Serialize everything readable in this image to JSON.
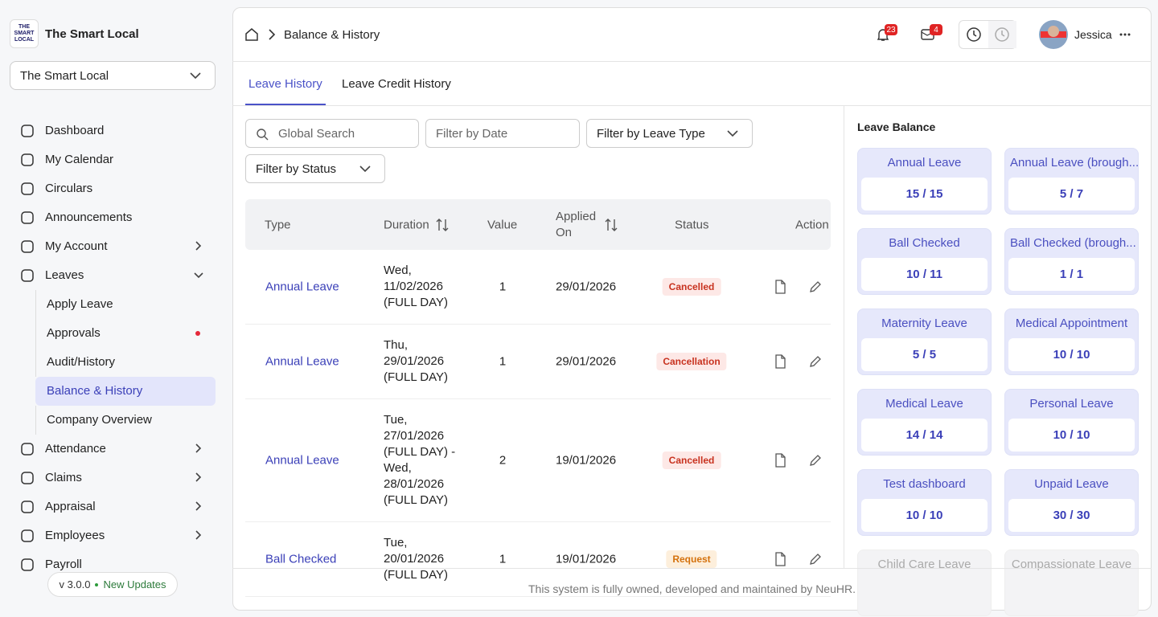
{
  "sidebar": {
    "logo": [
      "THE",
      "SMART",
      "LOCAL"
    ],
    "brand": "The Smart Local",
    "company_select": "The Smart Local",
    "menu": [
      {
        "label": "Dashboard"
      },
      {
        "label": "My Calendar"
      },
      {
        "label": "Circulars"
      },
      {
        "label": "Announcements"
      },
      {
        "label": "My Account",
        "expand": "right"
      },
      {
        "label": "Leaves",
        "expand": "down",
        "children": [
          {
            "label": "Apply Leave"
          },
          {
            "label": "Approvals",
            "alert": true
          },
          {
            "label": "Audit/History"
          },
          {
            "label": "Balance & History",
            "active": true
          },
          {
            "label": "Company Overview"
          }
        ]
      },
      {
        "label": "Attendance",
        "expand": "right"
      },
      {
        "label": "Claims",
        "expand": "right"
      },
      {
        "label": "Appraisal",
        "expand": "right"
      },
      {
        "label": "Employees",
        "expand": "right"
      },
      {
        "label": "Payroll"
      }
    ],
    "version": "v 3.0.0",
    "updates": "New Updates"
  },
  "header": {
    "breadcrumb": "Balance & History",
    "notifications": "23",
    "messages": "4",
    "user": "Jessica"
  },
  "tabs": [
    "Leave History",
    "Leave Credit History"
  ],
  "filters": {
    "search": "Global Search",
    "date": "Filter by Date",
    "leave_type": "Filter by Leave Type",
    "status": "Filter by Status"
  },
  "table": {
    "columns": [
      "Type",
      "Duration",
      "Value",
      "Applied On",
      "Status",
      "Action"
    ],
    "rows": [
      {
        "type": "Annual Leave",
        "duration": "Wed, 11/02/2026 (FULL DAY)",
        "value": 1,
        "applied_on": "29/01/2026",
        "status": "Cancelled",
        "tone": "red"
      },
      {
        "type": "Annual Leave",
        "duration": "Thu, 29/01/2026 (FULL DAY)",
        "value": 1,
        "applied_on": "29/01/2026",
        "status": "Cancellation",
        "tone": "red"
      },
      {
        "type": "Annual Leave",
        "duration": "Tue, 27/01/2026 (FULL DAY) - Wed, 28/01/2026 (FULL DAY)",
        "value": 2,
        "applied_on": "19/01/2026",
        "status": "Cancelled",
        "tone": "red"
      },
      {
        "type": "Ball Checked",
        "duration": "Tue, 20/01/2026 (FULL DAY)",
        "value": 1,
        "applied_on": "19/01/2026",
        "status": "Request",
        "tone": "orange"
      }
    ]
  },
  "balance": {
    "title": "Leave Balance",
    "items": [
      {
        "name": "Annual Leave",
        "value": "15 / 15"
      },
      {
        "name": "Annual Leave (brough...",
        "value": "5 / 7"
      },
      {
        "name": "Ball Checked",
        "value": "10 / 11"
      },
      {
        "name": "Ball Checked (brough...",
        "value": "1 / 1"
      },
      {
        "name": "Maternity Leave",
        "value": "5 / 5"
      },
      {
        "name": "Medical Appointment",
        "value": "10 / 10"
      },
      {
        "name": "Medical Leave",
        "value": "14 / 14"
      },
      {
        "name": "Personal Leave",
        "value": "10 / 10"
      },
      {
        "name": "Test dashboard",
        "value": "10 / 10"
      },
      {
        "name": "Unpaid Leave",
        "value": "30 / 30"
      },
      {
        "name": "Child Care Leave",
        "disabled": true
      },
      {
        "name": "Compassionate Leave",
        "disabled": true
      }
    ]
  },
  "footer": "This system is fully owned, developed and maintained by NeuHR."
}
